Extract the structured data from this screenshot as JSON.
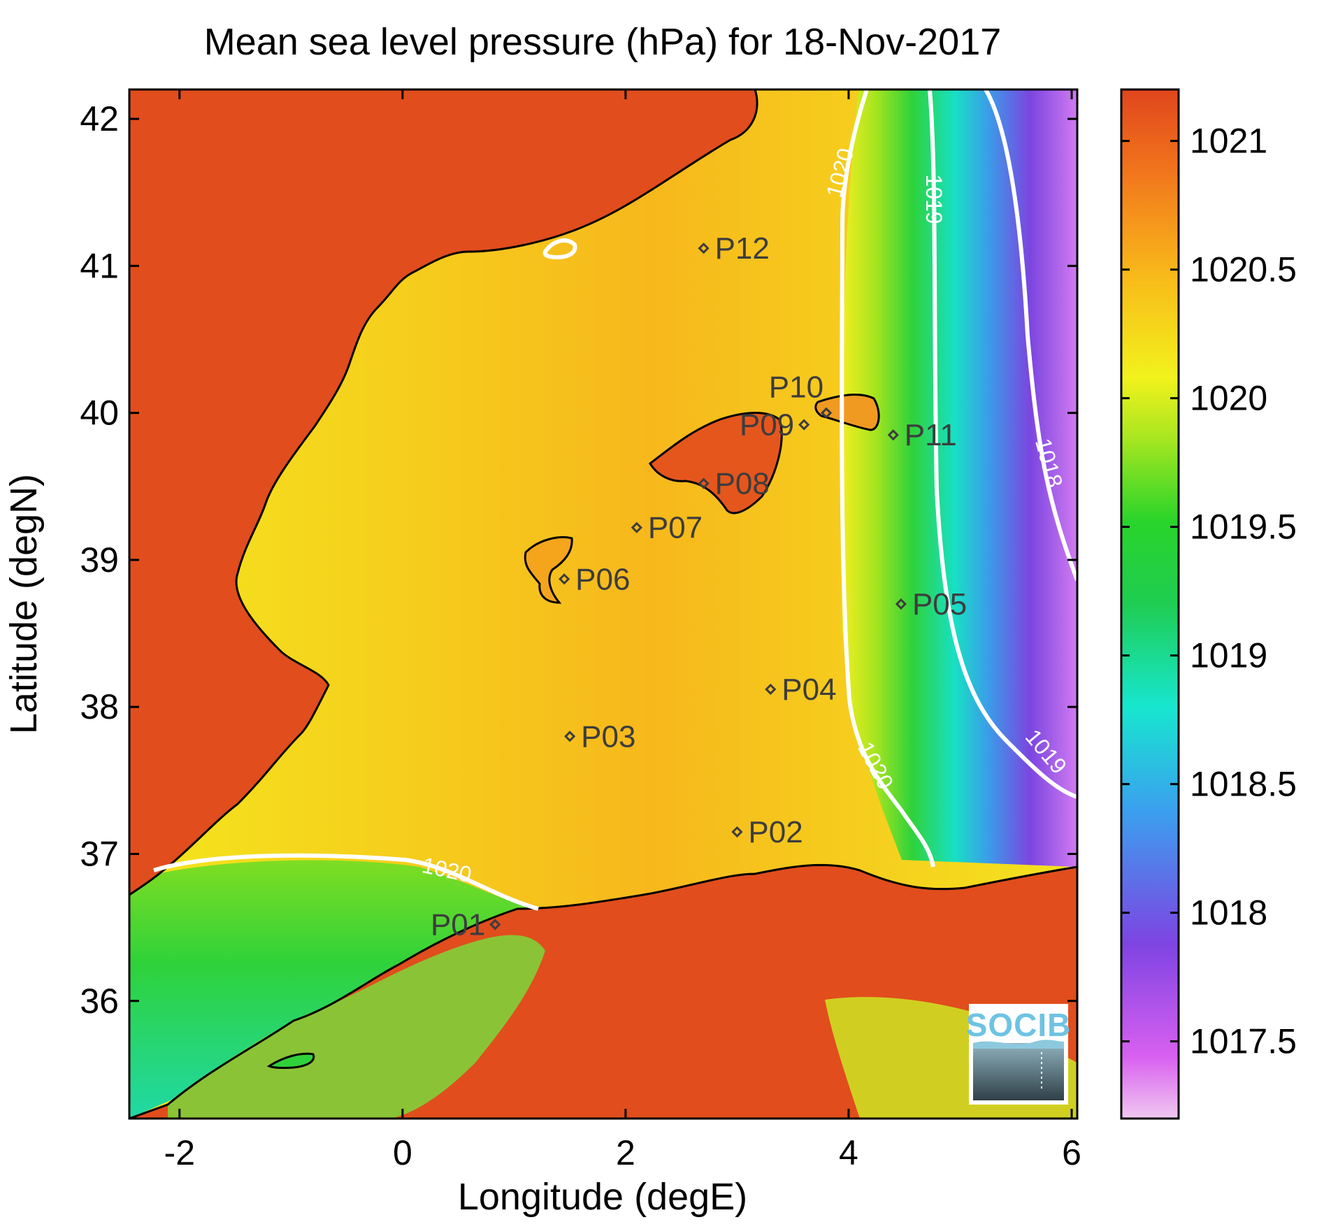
{
  "title": "Mean sea level pressure (hPa) for 18-Nov-2017",
  "xlabel": "Longitude (degE)",
  "ylabel": "Latitude (degN)",
  "xticks": [
    "-2",
    "0",
    "2",
    "4",
    "6"
  ],
  "yticks": [
    "36",
    "37",
    "38",
    "39",
    "40",
    "41",
    "42"
  ],
  "colorbar": {
    "ticks": [
      "1017.5",
      "1018",
      "1018.5",
      "1019",
      "1019.5",
      "1020",
      "1020.5",
      "1021"
    ],
    "range": [
      1017.2,
      1021.2
    ]
  },
  "contour_labels": [
    "1020",
    "1019",
    "1018",
    "1019",
    "1020",
    "1020"
  ],
  "stations": [
    {
      "label": "P01",
      "lon": 0.83,
      "lat": 36.52
    },
    {
      "label": "P02",
      "lon": 3.0,
      "lat": 37.15
    },
    {
      "label": "P03",
      "lon": 1.5,
      "lat": 37.8
    },
    {
      "label": "P04",
      "lon": 3.3,
      "lat": 38.12
    },
    {
      "label": "P05",
      "lon": 4.47,
      "lat": 38.7
    },
    {
      "label": "P06",
      "lon": 1.45,
      "lat": 38.87
    },
    {
      "label": "P07",
      "lon": 2.1,
      "lat": 39.22
    },
    {
      "label": "P08",
      "lon": 2.7,
      "lat": 39.52
    },
    {
      "label": "P09",
      "lon": 3.6,
      "lat": 39.92
    },
    {
      "label": "P10",
      "lon": 3.8,
      "lat": 40.0
    },
    {
      "label": "P11",
      "lon": 4.4,
      "lat": 39.85
    },
    {
      "label": "P12",
      "lon": 2.7,
      "lat": 41.12
    }
  ],
  "logo": {
    "text": "SOCIB"
  },
  "colors": {
    "high": "#e14d1d",
    "mid": "#f7c11a",
    "low_green": "#2fd23a",
    "low_blue": "#1fd7d0",
    "low_purple": "#7b45e0",
    "contour": "#ffffff",
    "coast": "#000000"
  }
}
